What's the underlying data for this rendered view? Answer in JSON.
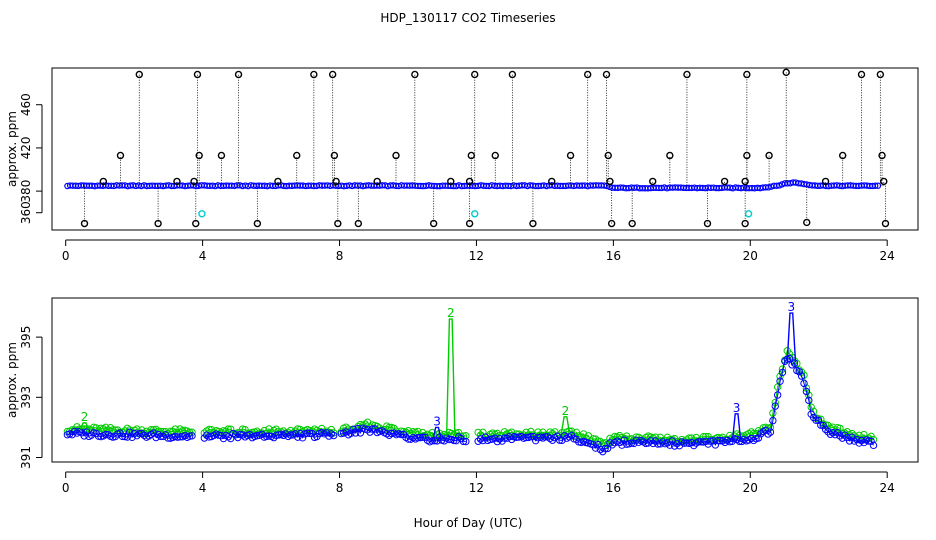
{
  "title": "HDP_130117  CO2 Timeseries",
  "colors": {
    "black": "#000000",
    "blue": "#0000ff",
    "green": "#00cc00",
    "cyan": "#00cccc"
  },
  "chart_data": [
    {
      "type": "scatter",
      "xlabel": "",
      "ylabel": "approx. ppm",
      "xlim": [
        -0.4,
        24.9
      ],
      "ylim": [
        344,
        494
      ],
      "xticks": [
        "0",
        "4",
        "8",
        "12",
        "16",
        "20",
        "24"
      ],
      "yticks": [
        "360",
        "380",
        "420",
        "460"
      ],
      "baseline_series": {
        "color": "blue",
        "x_start": 0.05,
        "x_end": 23.75,
        "step": 0.08,
        "y": [
          [
            0,
            385
          ],
          [
            15.75,
            385
          ],
          [
            16,
            383
          ],
          [
            20.3,
            383
          ],
          [
            20.8,
            385
          ],
          [
            21,
            387
          ],
          [
            21.3,
            388
          ],
          [
            21.7,
            386
          ],
          [
            22,
            385
          ],
          [
            23.75,
            385
          ]
        ]
      },
      "high_spikes": [
        {
          "x": 2.15,
          "y": 488
        },
        {
          "x": 3.85,
          "y": 488
        },
        {
          "x": 5.05,
          "y": 488
        },
        {
          "x": 7.25,
          "y": 488
        },
        {
          "x": 7.8,
          "y": 488
        },
        {
          "x": 10.2,
          "y": 488
        },
        {
          "x": 11.95,
          "y": 488
        },
        {
          "x": 13.05,
          "y": 488
        },
        {
          "x": 15.25,
          "y": 488
        },
        {
          "x": 15.8,
          "y": 488
        },
        {
          "x": 18.15,
          "y": 488
        },
        {
          "x": 19.9,
          "y": 488
        },
        {
          "x": 21.05,
          "y": 490
        },
        {
          "x": 23.25,
          "y": 488
        },
        {
          "x": 23.8,
          "y": 488
        }
      ],
      "mid_spikes": [
        {
          "x": 1.6,
          "y": 413
        },
        {
          "x": 3.9,
          "y": 413
        },
        {
          "x": 4.55,
          "y": 413
        },
        {
          "x": 6.75,
          "y": 413
        },
        {
          "x": 7.85,
          "y": 413
        },
        {
          "x": 9.65,
          "y": 413
        },
        {
          "x": 11.85,
          "y": 413
        },
        {
          "x": 12.55,
          "y": 413
        },
        {
          "x": 14.75,
          "y": 413
        },
        {
          "x": 15.85,
          "y": 413
        },
        {
          "x": 17.65,
          "y": 413
        },
        {
          "x": 19.9,
          "y": 413
        },
        {
          "x": 20.55,
          "y": 413
        },
        {
          "x": 22.7,
          "y": 413
        },
        {
          "x": 23.85,
          "y": 413
        }
      ],
      "small_bumps": [
        {
          "x": 1.1,
          "y": 389
        },
        {
          "x": 3.25,
          "y": 389
        },
        {
          "x": 3.75,
          "y": 389
        },
        {
          "x": 6.2,
          "y": 389
        },
        {
          "x": 7.9,
          "y": 389
        },
        {
          "x": 9.1,
          "y": 389
        },
        {
          "x": 11.25,
          "y": 389
        },
        {
          "x": 11.8,
          "y": 389
        },
        {
          "x": 14.2,
          "y": 389
        },
        {
          "x": 15.9,
          "y": 389
        },
        {
          "x": 17.15,
          "y": 389
        },
        {
          "x": 19.25,
          "y": 389
        },
        {
          "x": 19.85,
          "y": 389
        },
        {
          "x": 22.2,
          "y": 389
        },
        {
          "x": 23.9,
          "y": 389
        }
      ],
      "low_dips": [
        {
          "x": 0.55,
          "y": 350
        },
        {
          "x": 2.7,
          "y": 350
        },
        {
          "x": 3.8,
          "y": 350
        },
        {
          "x": 5.6,
          "y": 350
        },
        {
          "x": 7.95,
          "y": 350
        },
        {
          "x": 8.55,
          "y": 350
        },
        {
          "x": 10.75,
          "y": 350
        },
        {
          "x": 11.8,
          "y": 350
        },
        {
          "x": 13.65,
          "y": 350
        },
        {
          "x": 15.95,
          "y": 350
        },
        {
          "x": 16.55,
          "y": 350
        },
        {
          "x": 18.75,
          "y": 350
        },
        {
          "x": 19.85,
          "y": 350
        },
        {
          "x": 21.65,
          "y": 351
        },
        {
          "x": 23.95,
          "y": 350
        }
      ],
      "cyan_points": [
        {
          "x": 3.98,
          "y": 359
        },
        {
          "x": 11.95,
          "y": 359
        },
        {
          "x": 19.95,
          "y": 359
        }
      ]
    },
    {
      "type": "line",
      "xlabel": "Hour of Day (UTC)",
      "ylabel": "approx. ppm",
      "xlim": [
        -0.4,
        24.9
      ],
      "ylim": [
        390.85,
        396.3
      ],
      "xticks": [
        "0",
        "4",
        "8",
        "12",
        "16",
        "20",
        "24"
      ],
      "yticks": [
        "391",
        "393",
        "395"
      ],
      "segments": [
        {
          "x_start": 0.05,
          "x_end": 3.75,
          "step": 0.07,
          "blue": [
            [
              0,
              391.8
            ],
            [
              3.75,
              391.7
            ]
          ],
          "green": [
            [
              0,
              391.95
            ],
            [
              3.75,
              391.85
            ]
          ]
        },
        {
          "x_start": 4.05,
          "x_end": 7.85,
          "step": 0.07,
          "blue": [
            [
              4,
              391.7
            ],
            [
              7.85,
              391.75
            ]
          ],
          "green": [
            [
              4,
              391.85
            ],
            [
              7.85,
              391.9
            ]
          ]
        },
        {
          "x_start": 8.05,
          "x_end": 11.75,
          "step": 0.07,
          "blue": [
            [
              8,
              391.75
            ],
            [
              8.8,
              391.95
            ],
            [
              9.6,
              391.75
            ],
            [
              10.5,
              391.6
            ],
            [
              11.75,
              391.6
            ]
          ],
          "green": [
            [
              8,
              391.9
            ],
            [
              8.8,
              392.1
            ],
            [
              9.6,
              391.9
            ],
            [
              10.5,
              391.75
            ],
            [
              11.75,
              391.75
            ]
          ]
        },
        {
          "x_start": 12.05,
          "x_end": 23.65,
          "step": 0.07,
          "blue": [
            [
              12,
              391.6
            ],
            [
              14.8,
              391.65
            ],
            [
              15.3,
              391.5
            ],
            [
              15.75,
              391.25
            ],
            [
              16,
              391.5
            ],
            [
              18.5,
              391.45
            ],
            [
              20,
              391.6
            ],
            [
              20.6,
              391.9
            ],
            [
              20.85,
              393.4
            ],
            [
              21.05,
              394.3
            ],
            [
              21.3,
              394.1
            ],
            [
              21.55,
              393.6
            ],
            [
              21.8,
              392.4
            ],
            [
              22.2,
              391.9
            ],
            [
              23.0,
              391.6
            ],
            [
              23.65,
              391.45
            ]
          ],
          "green": [
            [
              12,
              391.75
            ],
            [
              14.8,
              391.8
            ],
            [
              15.3,
              391.65
            ],
            [
              15.75,
              391.4
            ],
            [
              16,
              391.65
            ],
            [
              18.5,
              391.6
            ],
            [
              20,
              391.75
            ],
            [
              20.6,
              392.05
            ],
            [
              20.85,
              393.6
            ],
            [
              21.05,
              394.5
            ],
            [
              21.3,
              394.25
            ],
            [
              21.55,
              393.75
            ],
            [
              21.8,
              392.55
            ],
            [
              22.2,
              392.05
            ],
            [
              23.0,
              391.75
            ],
            [
              23.65,
              391.6
            ]
          ]
        }
      ],
      "spikes": [
        {
          "series": "green",
          "x": 11.25,
          "y": 395.6,
          "label": "2"
        },
        {
          "series": "green",
          "x": 14.6,
          "y": 392.35,
          "label": "2"
        },
        {
          "series": "green",
          "x": 0.55,
          "y": 392.15,
          "label": "2"
        },
        {
          "series": "blue",
          "x": 21.2,
          "y": 395.8,
          "label": "3"
        },
        {
          "series": "blue",
          "x": 19.6,
          "y": 392.45,
          "label": "3"
        },
        {
          "series": "blue",
          "x": 10.85,
          "y": 392.0,
          "label": "3"
        }
      ]
    }
  ]
}
